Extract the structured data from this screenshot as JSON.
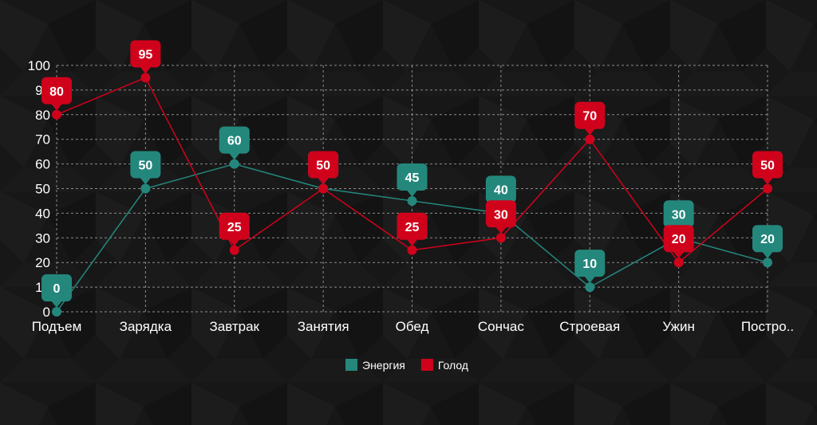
{
  "chart_data": {
    "type": "line",
    "title": "",
    "xlabel": "",
    "ylabel": "",
    "ylim": [
      0,
      100
    ],
    "yticks": [
      0,
      10,
      20,
      30,
      40,
      50,
      60,
      70,
      80,
      90,
      100
    ],
    "grid": true,
    "legend_position": "bottom",
    "categories": [
      "Подъем",
      "Зарядка",
      "Завтрак",
      "Занятия",
      "Обед",
      "Сончас",
      "Строевая",
      "Ужин",
      "Постро.."
    ],
    "series": [
      {
        "name": "Энергия",
        "color": "#24877c",
        "values": [
          0,
          50,
          60,
          50,
          45,
          40,
          10,
          30,
          20
        ]
      },
      {
        "name": "Голод",
        "color": "#d0021b",
        "values": [
          80,
          95,
          25,
          50,
          25,
          30,
          70,
          20,
          50
        ]
      }
    ]
  }
}
